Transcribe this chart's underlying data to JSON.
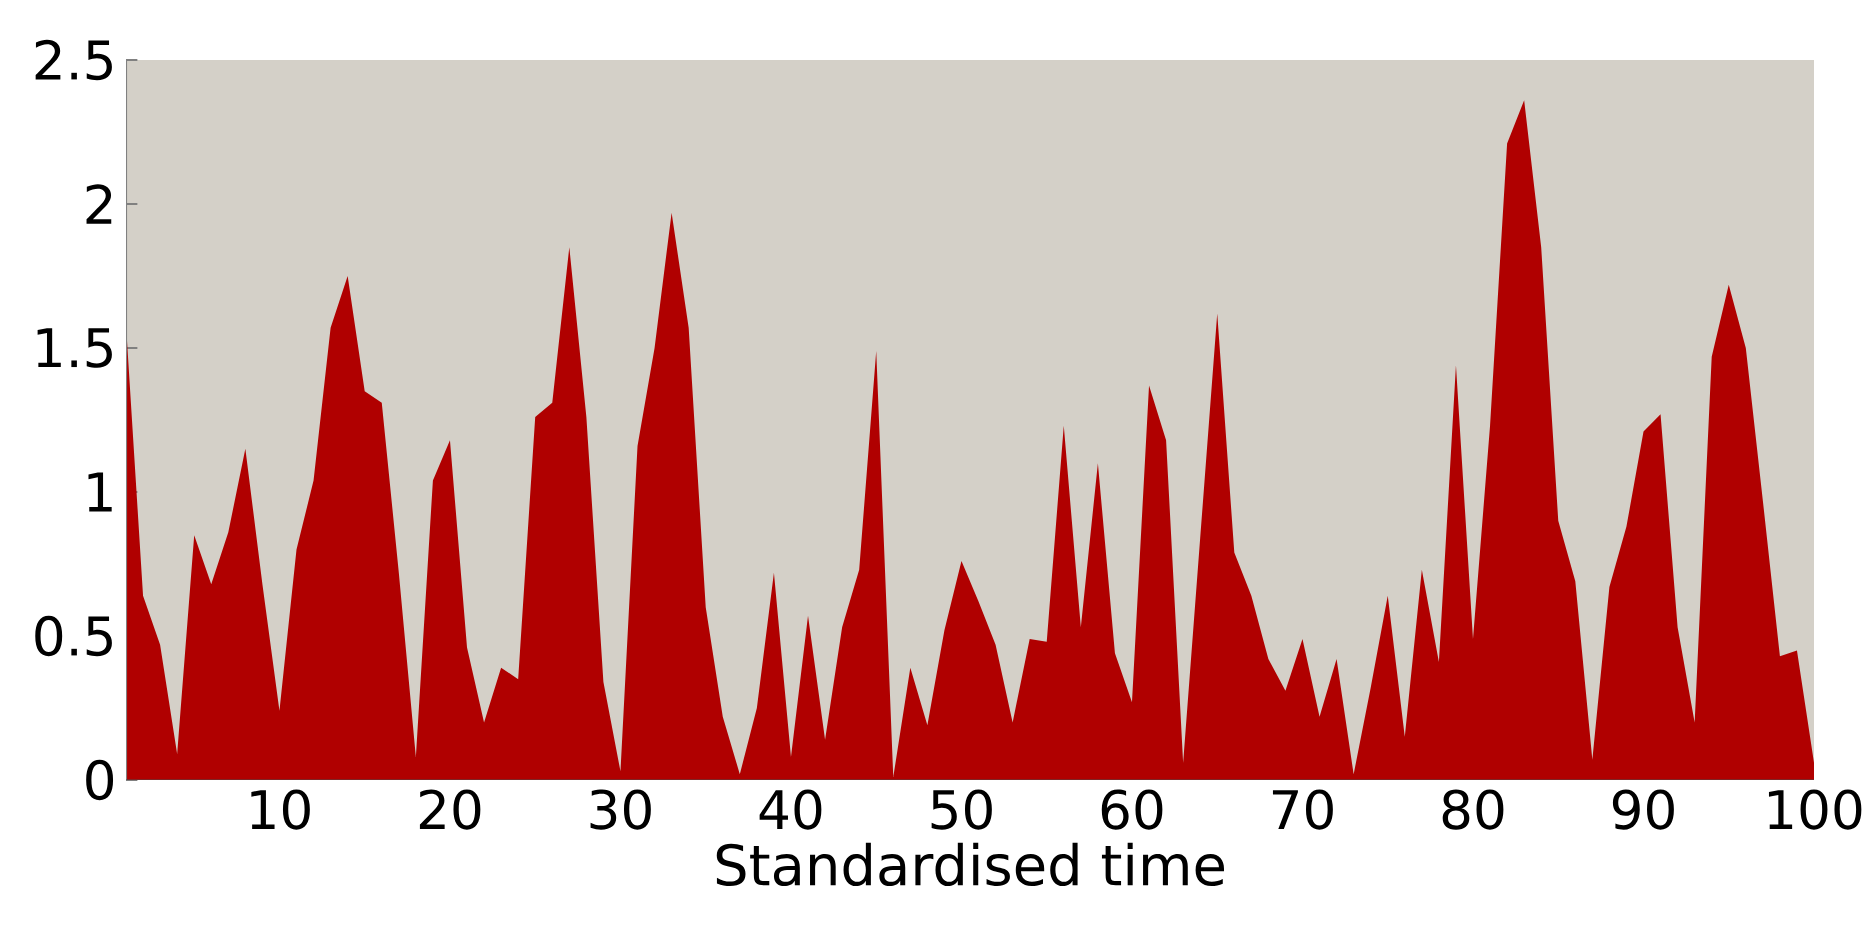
{
  "chart_data": {
    "type": "area",
    "xlabel": "Standardised time",
    "color": "#b00000",
    "x": [
      1,
      2,
      3,
      4,
      5,
      6,
      7,
      8,
      9,
      10,
      11,
      12,
      13,
      14,
      15,
      16,
      17,
      18,
      19,
      20,
      21,
      22,
      23,
      24,
      25,
      26,
      27,
      28,
      29,
      30,
      31,
      32,
      33,
      34,
      35,
      36,
      37,
      38,
      39,
      40,
      41,
      42,
      43,
      44,
      45,
      46,
      47,
      48,
      49,
      50,
      51,
      52,
      53,
      54,
      55,
      56,
      57,
      58,
      59,
      60,
      61,
      62,
      63,
      64,
      65,
      66,
      67,
      68,
      69,
      70,
      71,
      72,
      73,
      74,
      75,
      76,
      77,
      78,
      79,
      80,
      81,
      82,
      83,
      84,
      85,
      86,
      87,
      88,
      89,
      90,
      91,
      92,
      93,
      94,
      95,
      96,
      97,
      98,
      99,
      100
    ],
    "values": [
      1.58,
      0.64,
      0.47,
      0.09,
      0.85,
      0.68,
      0.86,
      1.15,
      0.68,
      0.24,
      0.8,
      1.04,
      1.57,
      1.75,
      1.35,
      1.31,
      0.72,
      0.08,
      1.04,
      1.18,
      0.46,
      0.2,
      0.39,
      0.35,
      1.26,
      1.31,
      1.85,
      1.26,
      0.34,
      0.03,
      1.16,
      1.5,
      1.97,
      1.57,
      0.6,
      0.22,
      0.02,
      0.25,
      0.72,
      0.08,
      0.57,
      0.14,
      0.53,
      0.73,
      1.49,
      0.01,
      0.39,
      0.19,
      0.52,
      0.76,
      0.62,
      0.47,
      0.2,
      0.49,
      0.48,
      1.23,
      0.53,
      1.1,
      0.44,
      0.27,
      1.37,
      1.18,
      0.06,
      0.84,
      1.62,
      0.79,
      0.64,
      0.42,
      0.31,
      0.49,
      0.22,
      0.42,
      0.02,
      0.32,
      0.64,
      0.15,
      0.73,
      0.41,
      1.44,
      0.49,
      1.23,
      2.21,
      2.36,
      1.85,
      0.9,
      0.69,
      0.07,
      0.67,
      0.88,
      1.21,
      1.27,
      0.53,
      0.2,
      1.47,
      1.72,
      1.5,
      0.97,
      0.43,
      0.45,
      0.06
    ],
    "xlim": [
      1,
      100
    ],
    "ylim": [
      0,
      2.5
    ],
    "xticks": [
      10,
      20,
      30,
      40,
      50,
      60,
      70,
      80,
      90,
      100
    ],
    "yticks": [
      0,
      0.5,
      1,
      1.5,
      2,
      2.5
    ]
  }
}
